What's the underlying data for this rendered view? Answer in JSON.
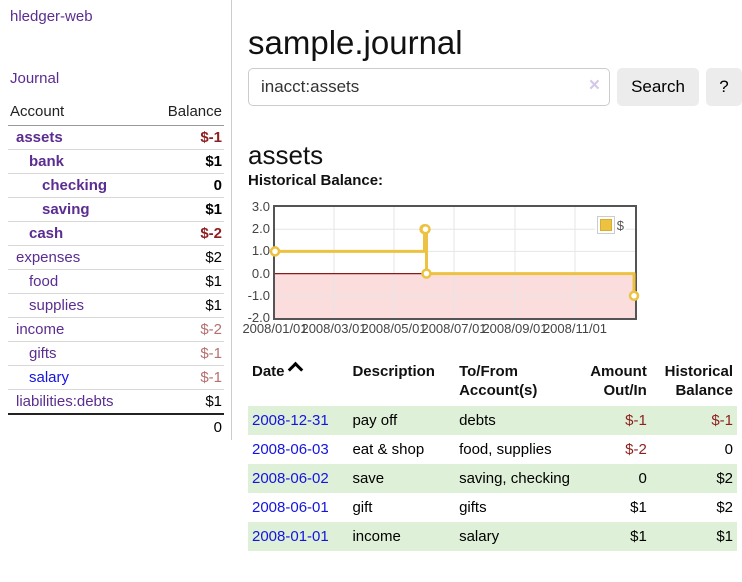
{
  "colors": {
    "purple": "#5b2d91",
    "blue": "#1414e0",
    "neg-strong": "#8e1f1f",
    "neg-muted": "#b4706e",
    "row-green": "#dff0d8",
    "chart-yellow": "#edc240"
  },
  "app": {
    "title": "hledger-web",
    "nav_journal": "Journal"
  },
  "sidebar": {
    "columns": {
      "account": "Account",
      "balance": "Balance"
    },
    "accounts": [
      {
        "name": "assets",
        "depth": 1,
        "bold": true,
        "balance": "$-1",
        "negative": "strong"
      },
      {
        "name": "bank",
        "depth": 2,
        "bold": true,
        "balance": "$1",
        "negative": null
      },
      {
        "name": "checking",
        "depth": 3,
        "bold": true,
        "balance": "0",
        "negative": null
      },
      {
        "name": "saving",
        "depth": 3,
        "bold": true,
        "balance": "$1",
        "negative": null
      },
      {
        "name": "cash",
        "depth": 2,
        "bold": true,
        "balance": "$-2",
        "negative": "strong"
      },
      {
        "name": "expenses",
        "depth": 1,
        "bold": false,
        "balance": "$2",
        "negative": null
      },
      {
        "name": "food",
        "depth": 2,
        "bold": false,
        "balance": "$1",
        "negative": null
      },
      {
        "name": "supplies",
        "depth": 2,
        "bold": false,
        "balance": "$1",
        "negative": null
      },
      {
        "name": "income",
        "depth": 1,
        "bold": false,
        "balance": "$-2",
        "negative": "muted"
      },
      {
        "name": "gifts",
        "depth": 2,
        "bold": false,
        "balance": "$-1",
        "negative": "muted"
      },
      {
        "name": "salary",
        "depth": 2,
        "bold": false,
        "balance": "$-1",
        "negative": "muted",
        "link_color": "blue"
      },
      {
        "name": "liabilities:debts",
        "depth": 1,
        "bold": false,
        "balance": "$1",
        "negative": null
      }
    ],
    "total": "0"
  },
  "header": {
    "title": "sample.journal"
  },
  "search": {
    "value": "inacct:assets",
    "clear_icon": "×",
    "button": "Search",
    "help_button": "?"
  },
  "account_page": {
    "heading": "assets",
    "chart_label": "Historical Balance:"
  },
  "chart_data": {
    "type": "line",
    "steps": true,
    "title": "Historical Balance",
    "series": [
      {
        "name": "$",
        "color": "#edc240",
        "points": [
          [
            "2008-01-01",
            1
          ],
          [
            "2008-06-01",
            2
          ],
          [
            "2008-06-02",
            2
          ],
          [
            "2008-06-03",
            0
          ],
          [
            "2008-12-31",
            -1
          ]
        ]
      }
    ],
    "x_range": [
      "2008-01-01",
      "2009-01-01"
    ],
    "x_ticks": [
      "2008/01/01",
      "2008/03/01",
      "2008/05/01",
      "2008/07/01",
      "2008/09/01",
      "2008/11/01"
    ],
    "y_range": [
      -2,
      3
    ],
    "y_ticks": [
      3.0,
      2.0,
      1.0,
      0.0,
      -1.0,
      -2.0
    ],
    "legend": "$",
    "legend_position": "top-right",
    "grid": true,
    "negative_fill": "#fbdddd",
    "zero_line_color": "#8b1a1a"
  },
  "register": {
    "columns": [
      {
        "label": "Date",
        "sorted": "asc"
      },
      {
        "label": "Description"
      },
      {
        "label": "To/From Account(s)"
      },
      {
        "label": "Amount Out/In"
      },
      {
        "label": "Historical Balance"
      }
    ],
    "rows": [
      {
        "date": "2008-12-31",
        "description": "pay off",
        "accounts": "debts",
        "amount": "$-1",
        "balance": "$-1",
        "shaded": true
      },
      {
        "date": "2008-06-03",
        "description": "eat & shop",
        "accounts": "food, supplies",
        "amount": "$-2",
        "balance": "0",
        "shaded": false
      },
      {
        "date": "2008-06-02",
        "description": "save",
        "accounts": "saving, checking",
        "amount": "0",
        "balance": "$2",
        "shaded": true
      },
      {
        "date": "2008-06-01",
        "description": "gift",
        "accounts": "gifts",
        "amount": "$1",
        "balance": "$2",
        "shaded": false
      },
      {
        "date": "2008-01-01",
        "description": "income",
        "accounts": "salary",
        "amount": "$1",
        "balance": "$1",
        "shaded": true
      }
    ]
  }
}
